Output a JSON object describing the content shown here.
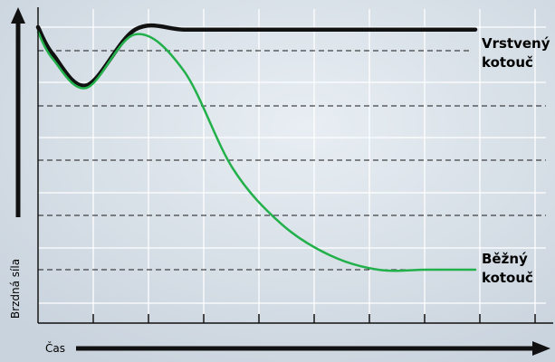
{
  "chart_data": {
    "type": "line",
    "title": "",
    "xlabel": "Čas",
    "ylabel": "Brzdná síla",
    "grid": true,
    "x": [
      0,
      0.3,
      1,
      2,
      3,
      4,
      5,
      6,
      7,
      8,
      9
    ],
    "ylim": [
      0,
      5
    ],
    "series": [
      {
        "name": "Vrstvený kotouč",
        "label_lines": [
          "Vrstvený",
          "kotouč"
        ],
        "color": "#111111",
        "values": [
          5.0,
          4.45,
          3.8,
          4.95,
          4.95,
          4.95,
          4.95,
          4.95,
          4.95,
          4.95,
          4.95
        ]
      },
      {
        "name": "Běžný kotouč",
        "label_lines": [
          "Běžný",
          "kotouč"
        ],
        "color": "#22b04a",
        "values": [
          4.9,
          4.35,
          3.75,
          4.85,
          4.1,
          2.1,
          0.95,
          0.3,
          0.0,
          0.0,
          0.0
        ]
      }
    ]
  },
  "colors": {
    "background": "#d4dde6",
    "grid": "#ffffff",
    "dash": "#1a1a1a",
    "axis_arrow": "#111111"
  }
}
